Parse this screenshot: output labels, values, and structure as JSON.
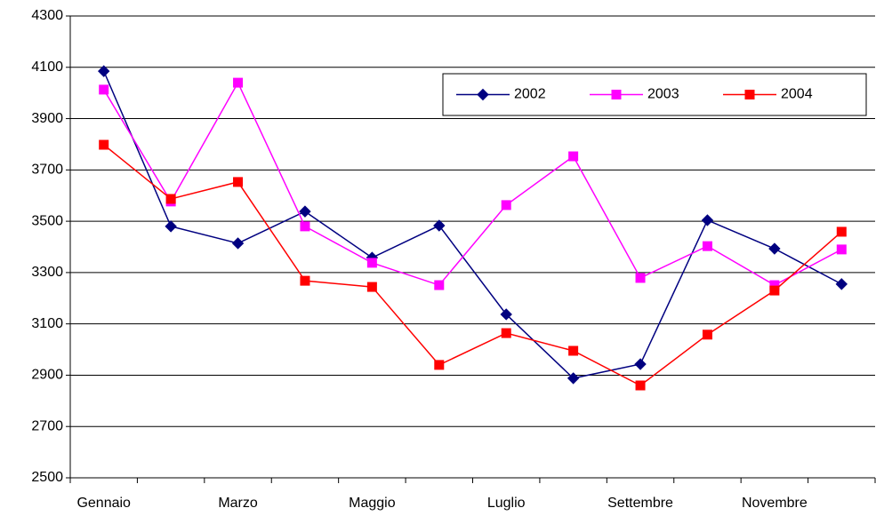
{
  "chart_data": {
    "type": "line",
    "categories": [
      "Gennaio",
      null,
      "Marzo",
      null,
      "Maggio",
      null,
      "Luglio",
      null,
      "Settembre",
      null,
      "Novembre",
      null
    ],
    "series": [
      {
        "name": "2002",
        "color": "#000080",
        "marker": "diamond",
        "values": [
          4085,
          3480,
          3414,
          3538,
          3358,
          3483,
          3137,
          2888,
          2943,
          3504,
          3393,
          3255
        ]
      },
      {
        "name": "2003",
        "color": "#ff00ff",
        "marker": "square",
        "values": [
          4013,
          3577,
          4040,
          3480,
          3338,
          3251,
          3563,
          3753,
          3279,
          3403,
          3251,
          3390
        ]
      },
      {
        "name": "2004",
        "color": "#ff0000",
        "marker": "square",
        "values": [
          3798,
          3587,
          3653,
          3268,
          3244,
          2940,
          3064,
          2995,
          2860,
          3058,
          3230,
          3459
        ]
      }
    ],
    "ylim": [
      2500,
      4300
    ],
    "yticks": [
      2500,
      2700,
      2900,
      3100,
      3300,
      3500,
      3700,
      3900,
      4100,
      4300
    ],
    "grid": true,
    "legend": "upper right"
  }
}
